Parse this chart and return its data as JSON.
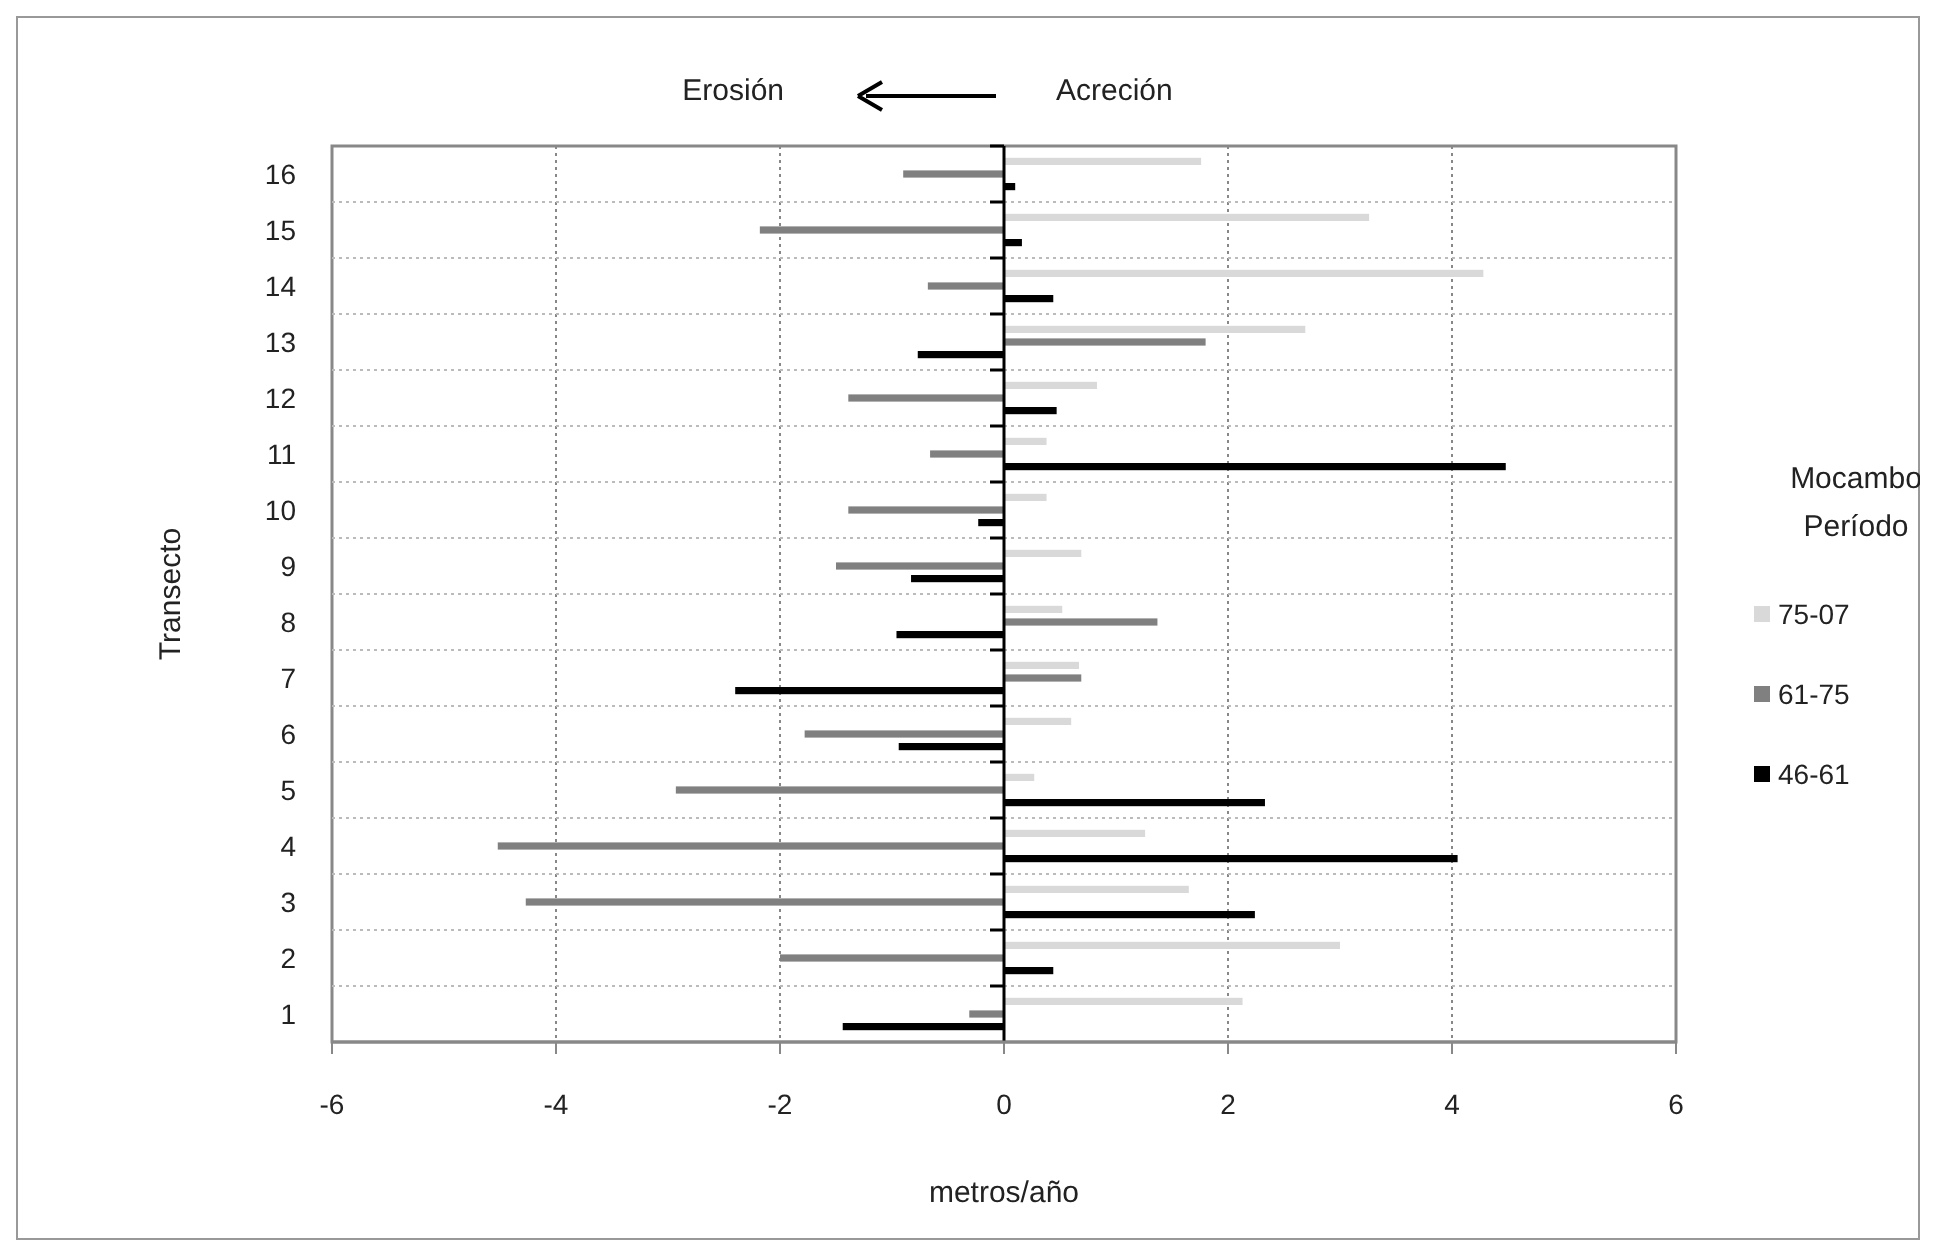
{
  "chart_data": {
    "type": "bar",
    "orientation": "horizontal",
    "categories": [
      "16",
      "15",
      "14",
      "13",
      "12",
      "11",
      "10",
      "9",
      "8",
      "7",
      "6",
      "5",
      "4",
      "3",
      "2",
      "1"
    ],
    "series": [
      {
        "name": "75-07",
        "color": "#d9d9d9",
        "values": [
          1.76,
          3.26,
          4.28,
          2.69,
          0.83,
          0.38,
          0.38,
          0.69,
          0.52,
          0.67,
          0.6,
          0.27,
          1.26,
          1.65,
          3.0,
          2.13
        ]
      },
      {
        "name": "61-75",
        "color": "#808080",
        "values": [
          -0.9,
          -2.18,
          -0.68,
          1.8,
          -1.39,
          -0.66,
          -1.39,
          -1.5,
          1.37,
          0.69,
          -1.78,
          -2.93,
          -4.52,
          -4.27,
          -2.0,
          -0.31
        ]
      },
      {
        "name": "46-61",
        "color": "#000000",
        "values": [
          0.1,
          0.16,
          0.44,
          -0.77,
          0.47,
          4.48,
          -0.23,
          -0.83,
          -0.96,
          -2.4,
          -0.94,
          2.33,
          4.05,
          2.24,
          0.44,
          -1.44
        ]
      }
    ],
    "xlim": [
      -6,
      6
    ],
    "xticks": [
      -6,
      -4,
      -2,
      0,
      2,
      4,
      6
    ],
    "xlabel": "metros/año",
    "ylabel": "Transecto",
    "legend_title": "Mocambo\nPeríodo",
    "annotations": [
      "Erosión",
      "Acreción"
    ],
    "grid": true,
    "legend": "right"
  }
}
